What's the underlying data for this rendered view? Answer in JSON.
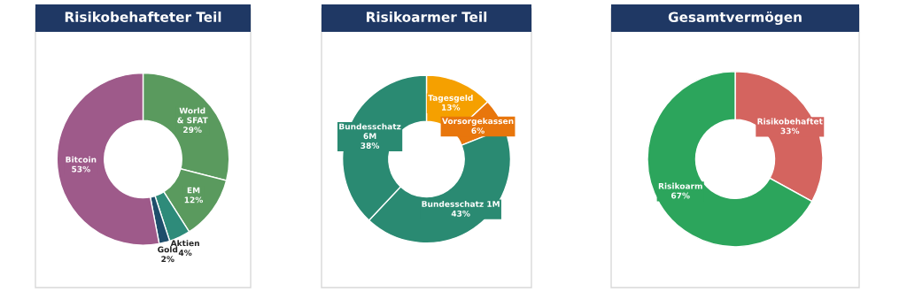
{
  "chart_data": [
    {
      "type": "donut",
      "title": "Risikobehafteter Teil",
      "categories": [
        "World\n& SFAT",
        "EM",
        "Aktien",
        "Gold",
        "Bitcoin"
      ],
      "values": [
        29,
        12,
        4,
        2,
        53
      ],
      "colors": [
        "#5a9a5e",
        "#5a9a5e",
        "#2e8b7a",
        "#1f4e6b",
        "#9e5a8a"
      ],
      "value_labels": [
        "29%",
        "12%",
        "4%",
        "2%",
        "53%"
      ]
    },
    {
      "type": "donut",
      "title": "Risikoarmer Teil",
      "categories": [
        "Tagesgeld",
        "Vorsorgekassen",
        "Bundesschatz 1M",
        "Bundesschatz\n6M"
      ],
      "values": [
        13,
        6,
        43,
        38
      ],
      "colors": [
        "#f5a000",
        "#e8760c",
        "#2a8a72",
        "#2a8a72"
      ],
      "value_labels": [
        "13%",
        "6%",
        "43%",
        "38%"
      ]
    },
    {
      "type": "donut",
      "title": "Gesamtvermögen",
      "categories": [
        "Risikobehaftet",
        "Risikoarm"
      ],
      "values": [
        33,
        67
      ],
      "colors": [
        "#d4645f",
        "#2ca55c"
      ],
      "value_labels": [
        "33%",
        "67%"
      ]
    }
  ]
}
